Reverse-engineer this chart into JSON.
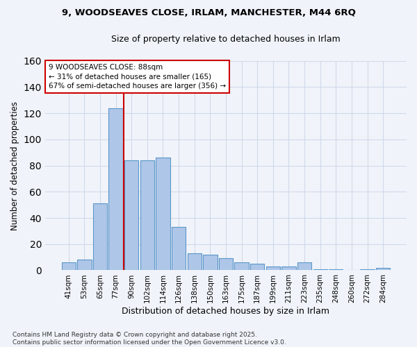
{
  "title_line1": "9, WOODSEAVES CLOSE, IRLAM, MANCHESTER, M44 6RQ",
  "title_line2": "Size of property relative to detached houses in Irlam",
  "xlabel": "Distribution of detached houses by size in Irlam",
  "ylabel": "Number of detached properties",
  "categories": [
    "41sqm",
    "53sqm",
    "65sqm",
    "77sqm",
    "90sqm",
    "102sqm",
    "114sqm",
    "126sqm",
    "138sqm",
    "150sqm",
    "163sqm",
    "175sqm",
    "187sqm",
    "199sqm",
    "211sqm",
    "223sqm",
    "235sqm",
    "248sqm",
    "260sqm",
    "272sqm",
    "284sqm"
  ],
  "values": [
    6,
    8,
    51,
    124,
    84,
    84,
    86,
    33,
    13,
    12,
    9,
    6,
    5,
    3,
    3,
    6,
    1,
    1,
    0,
    1,
    2
  ],
  "bar_color": "#aec6e8",
  "bar_edge_color": "#5a96c8",
  "annotation_line_label": "9 WOODSEAVES CLOSE: 88sqm",
  "annotation_pct_left": "← 31% of detached houses are smaller (165)",
  "annotation_pct_right": "67% of semi-detached houses are larger (356) →",
  "annotation_box_color": "#ffffff",
  "annotation_box_edge_color": "#cc0000",
  "vline_color": "#cc0000",
  "grid_color": "#d0d8e8",
  "background_color": "#f0f4fa",
  "ylim": [
    0,
    160
  ],
  "yticks": [
    0,
    20,
    40,
    60,
    80,
    100,
    120,
    140,
    160
  ],
  "footnote": "Contains HM Land Registry data © Crown copyright and database right 2025.\nContains public sector information licensed under the Open Government Licence v3.0.",
  "vline_x_index": 3.5,
  "title_fontsize": 9.5,
  "subtitle_fontsize": 9,
  "xlabel_fontsize": 9,
  "ylabel_fontsize": 8.5,
  "tick_fontsize": 7.5,
  "annot_fontsize": 7.5,
  "footnote_fontsize": 6.5
}
